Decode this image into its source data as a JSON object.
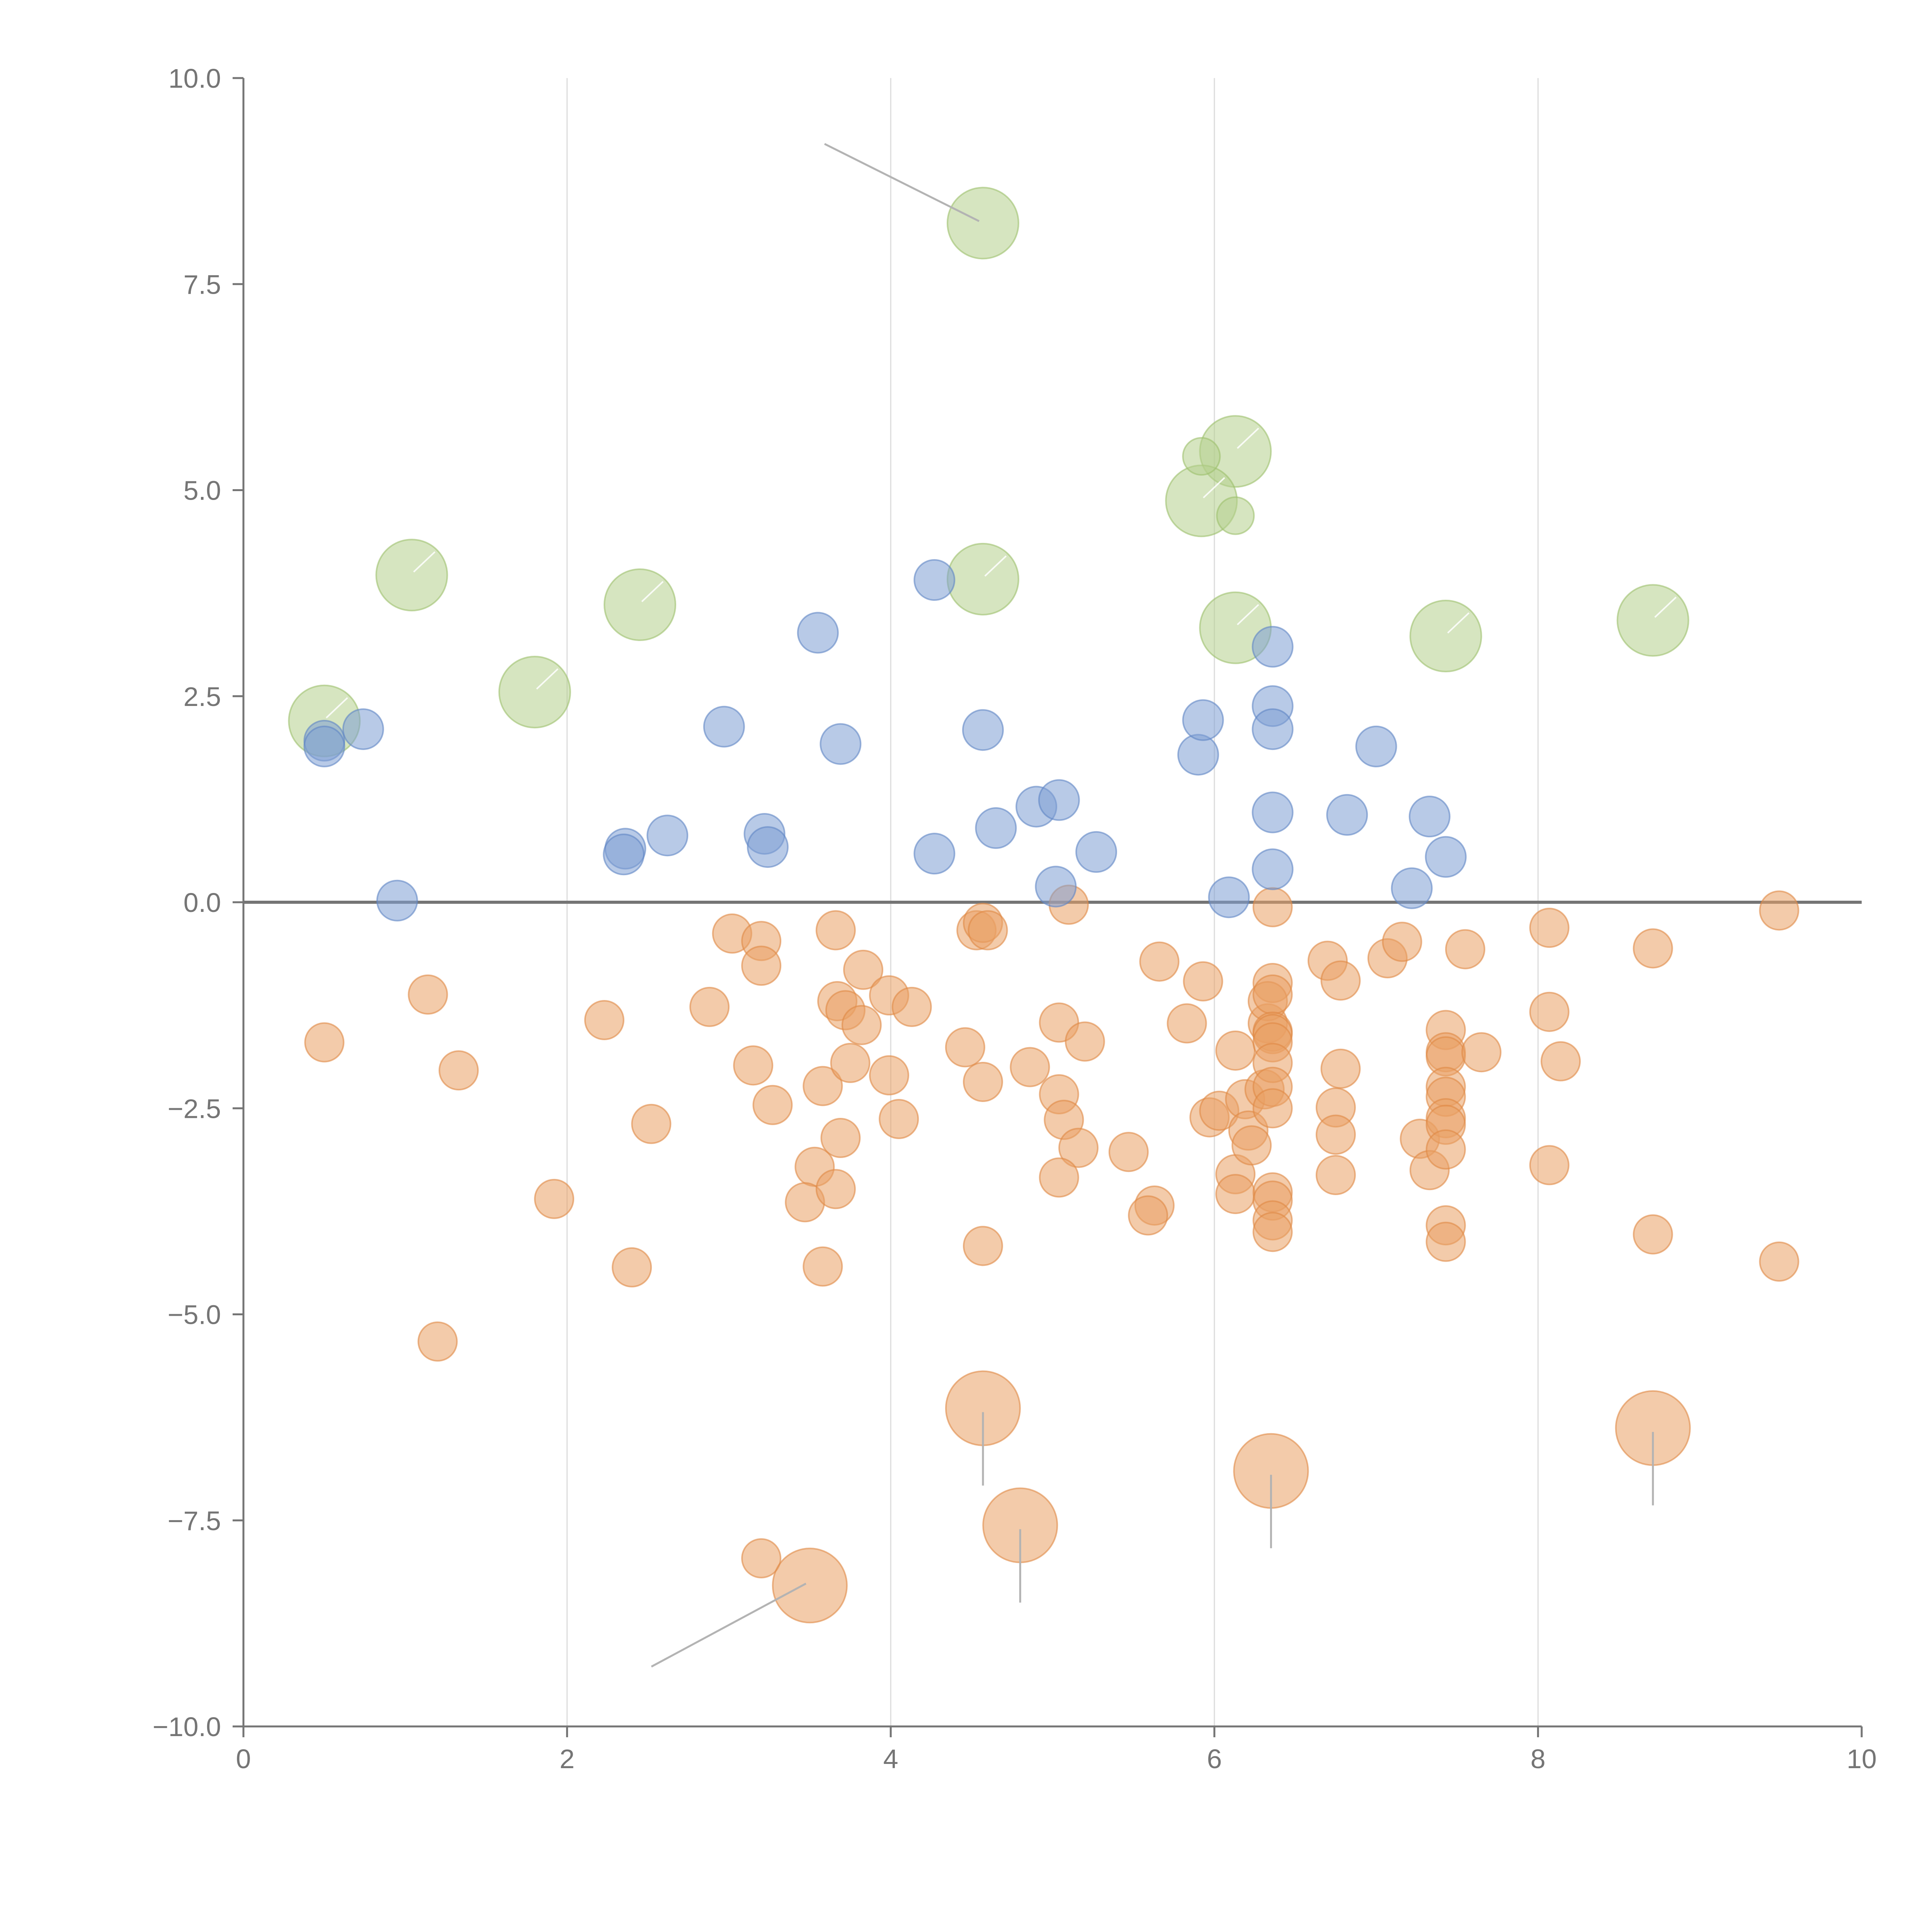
{
  "chart_data": {
    "type": "scatter",
    "title": "",
    "xlabel": "",
    "ylabel": "",
    "xlim": [
      0,
      10
    ],
    "ylim": [
      -10,
      10
    ],
    "grid": "vertical",
    "x_ticks": [
      0,
      2,
      4,
      6,
      8,
      10
    ],
    "x_tick_labels": [
      "0",
      "2",
      "4",
      "6",
      "8",
      "10"
    ],
    "y_ticks": [
      -10,
      -7.5,
      -5,
      -2.5,
      0,
      2.5,
      5,
      7.5,
      10
    ],
    "y_tick_labels": [
      "−10.0",
      "−7.5",
      "−5.0",
      "−2.5",
      "0.0",
      "2.5",
      "5.0",
      "7.5",
      "10.0"
    ],
    "zero_line_y": 0,
    "colors": {
      "blue": "#7d9fd3",
      "blue_stroke": "#5f85c4",
      "orange": "#eaa064",
      "orange_stroke": "#df8844",
      "green": "#b4d08c",
      "green_stroke": "#9cc06c"
    },
    "series": [
      {
        "name": "blue",
        "size": "small",
        "points": [
          [
            0.5,
            1.96
          ],
          [
            0.5,
            1.89
          ],
          [
            0.74,
            2.1
          ],
          [
            0.95,
            0.02
          ],
          [
            2.36,
            0.65
          ],
          [
            2.35,
            0.58
          ],
          [
            2.62,
            0.81
          ],
          [
            2.97,
            2.13
          ],
          [
            3.22,
            0.83
          ],
          [
            3.24,
            0.67
          ],
          [
            3.55,
            3.27
          ],
          [
            3.69,
            1.92
          ],
          [
            4.27,
            3.91
          ],
          [
            4.27,
            0.59
          ],
          [
            4.57,
            2.09
          ],
          [
            4.65,
            0.9
          ],
          [
            4.9,
            1.16
          ],
          [
            5.04,
            1.24
          ],
          [
            5.02,
            0.19
          ],
          [
            5.27,
            0.61
          ],
          [
            5.9,
            1.79
          ],
          [
            5.93,
            2.21
          ],
          [
            6.09,
            0.06
          ],
          [
            6.36,
            3.1
          ],
          [
            6.36,
            2.38
          ],
          [
            6.36,
            2.1
          ],
          [
            6.36,
            1.09
          ],
          [
            6.36,
            0.4
          ],
          [
            6.82,
            1.06
          ],
          [
            7.0,
            1.89
          ],
          [
            7.22,
            0.17
          ],
          [
            7.33,
            1.04
          ],
          [
            7.43,
            0.55
          ]
        ]
      },
      {
        "name": "orange",
        "size": "small",
        "points": [
          [
            0.5,
            -1.7
          ],
          [
            1.14,
            -1.12
          ],
          [
            1.33,
            -2.04
          ],
          [
            1.92,
            -3.6
          ],
          [
            2.23,
            -1.43
          ],
          [
            2.4,
            -4.43
          ],
          [
            2.52,
            -2.69
          ],
          [
            2.88,
            -1.27
          ],
          [
            3.02,
            -0.38
          ],
          [
            3.2,
            -0.47
          ],
          [
            3.2,
            -0.77
          ],
          [
            3.15,
            -1.98
          ],
          [
            3.27,
            -2.46
          ],
          [
            3.58,
            -2.23
          ],
          [
            3.53,
            -3.21
          ],
          [
            3.47,
            -3.64
          ],
          [
            3.58,
            -4.42
          ],
          [
            3.66,
            -0.34
          ],
          [
            3.67,
            -1.2
          ],
          [
            3.72,
            -1.31
          ],
          [
            3.82,
            -1.49
          ],
          [
            3.75,
            -1.95
          ],
          [
            3.69,
            -2.86
          ],
          [
            3.66,
            -3.48
          ],
          [
            3.83,
            -0.82
          ],
          [
            3.99,
            -1.13
          ],
          [
            4.13,
            -1.27
          ],
          [
            3.99,
            -2.1
          ],
          [
            4.05,
            -2.63
          ],
          [
            4.46,
            -1.76
          ],
          [
            4.53,
            -0.34
          ],
          [
            4.57,
            -0.25
          ],
          [
            4.6,
            -0.34
          ],
          [
            4.57,
            -2.18
          ],
          [
            4.57,
            -4.17
          ],
          [
            4.86,
            -2.0
          ],
          [
            5.04,
            -1.46
          ],
          [
            5.04,
            -2.33
          ],
          [
            5.07,
            -2.64
          ],
          [
            5.16,
            -2.98
          ],
          [
            5.04,
            -3.34
          ],
          [
            5.1,
            -0.03
          ],
          [
            5.2,
            -1.69
          ],
          [
            5.47,
            -3.03
          ],
          [
            5.66,
            -0.72
          ],
          [
            5.63,
            -3.68
          ],
          [
            5.59,
            -3.8
          ],
          [
            5.83,
            -1.47
          ],
          [
            5.93,
            -0.96
          ],
          [
            5.97,
            -2.61
          ],
          [
            6.03,
            -2.53
          ],
          [
            6.13,
            -1.8
          ],
          [
            6.19,
            -2.39
          ],
          [
            6.13,
            -3.3
          ],
          [
            6.13,
            -3.54
          ],
          [
            6.21,
            -2.77
          ],
          [
            6.23,
            -2.95
          ],
          [
            6.31,
            -2.27
          ],
          [
            6.33,
            -1.47
          ],
          [
            6.36,
            -0.06
          ],
          [
            6.36,
            -0.98
          ],
          [
            6.33,
            -1.2
          ],
          [
            6.36,
            -1.12
          ],
          [
            6.36,
            -1.57
          ],
          [
            6.36,
            -1.6
          ],
          [
            6.36,
            -1.7
          ],
          [
            6.36,
            -1.95
          ],
          [
            6.36,
            -2.24
          ],
          [
            6.36,
            -2.5
          ],
          [
            6.36,
            -3.52
          ],
          [
            6.36,
            -3.62
          ],
          [
            6.36,
            -3.86
          ],
          [
            6.36,
            -4.0
          ],
          [
            6.7,
            -0.71
          ],
          [
            6.78,
            -0.95
          ],
          [
            6.78,
            -2.02
          ],
          [
            6.75,
            -2.49
          ],
          [
            6.75,
            -2.82
          ],
          [
            6.75,
            -3.31
          ],
          [
            7.07,
            -0.68
          ],
          [
            7.16,
            -0.48
          ],
          [
            7.27,
            -2.87
          ],
          [
            7.33,
            -3.25
          ],
          [
            7.43,
            -1.55
          ],
          [
            7.43,
            -1.82
          ],
          [
            7.43,
            -1.87
          ],
          [
            7.43,
            -2.24
          ],
          [
            7.43,
            -2.36
          ],
          [
            7.43,
            -2.62
          ],
          [
            7.43,
            -2.7
          ],
          [
            7.43,
            -3.0
          ],
          [
            7.43,
            -3.92
          ],
          [
            7.43,
            -4.12
          ],
          [
            7.55,
            -0.57
          ],
          [
            7.65,
            -1.82
          ],
          [
            8.07,
            -0.31
          ],
          [
            8.07,
            -1.33
          ],
          [
            8.14,
            -1.93
          ],
          [
            8.07,
            -3.19
          ],
          [
            8.71,
            -0.56
          ],
          [
            8.71,
            -4.03
          ],
          [
            9.49,
            -0.1
          ],
          [
            9.49,
            -4.36
          ],
          [
            1.2,
            -5.33
          ],
          [
            3.2,
            -7.96
          ]
        ]
      },
      {
        "name": "orange-large",
        "size": "large",
        "points": [
          [
            4.57,
            -6.14
          ],
          [
            4.8,
            -7.56
          ],
          [
            6.35,
            -6.9
          ],
          [
            8.71,
            -6.38
          ],
          [
            3.5,
            -8.29
          ]
        ]
      },
      {
        "name": "green",
        "size": "large",
        "points": [
          [
            4.57,
            8.24
          ],
          [
            6.13,
            5.47
          ],
          [
            5.92,
            4.87
          ],
          [
            1.04,
            3.97
          ],
          [
            4.57,
            3.92
          ],
          [
            2.45,
            3.61
          ],
          [
            6.13,
            3.33
          ],
          [
            7.43,
            3.23
          ],
          [
            8.71,
            3.42
          ],
          [
            1.8,
            2.55
          ],
          [
            0.5,
            2.2
          ]
        ]
      },
      {
        "name": "green-small",
        "size": "small",
        "points": [
          [
            5.92,
            5.41
          ],
          [
            6.13,
            4.69
          ]
        ]
      }
    ]
  }
}
